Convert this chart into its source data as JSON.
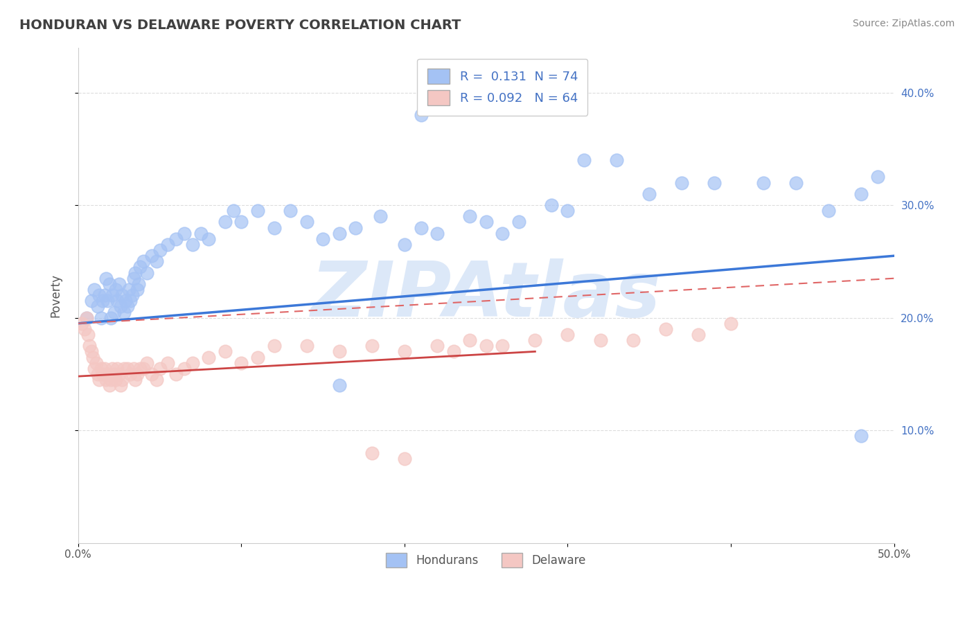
{
  "title": "HONDURAN VS DELAWARE POVERTY CORRELATION CHART",
  "source_text": "Source: ZipAtlas.com",
  "ylabel": "Poverty",
  "xlim": [
    0.0,
    0.5
  ],
  "ylim": [
    0.0,
    0.44
  ],
  "xticks": [
    0.0,
    0.1,
    0.2,
    0.3,
    0.4,
    0.5
  ],
  "xticklabels": [
    "0.0%",
    "",
    "",
    "",
    "",
    "50.0%"
  ],
  "yticks_right": [
    0.1,
    0.2,
    0.3,
    0.4
  ],
  "yticklabels_right": [
    "10.0%",
    "20.0%",
    "30.0%",
    "40.0%"
  ],
  "legend_r1": "0.131",
  "legend_n1": "74",
  "legend_r2": "0.092",
  "legend_n2": "64",
  "series1_label": "Hondurans",
  "series2_label": "Delaware",
  "series1_color": "#a4c2f4",
  "series2_color": "#f4c7c3",
  "trend1_color": "#3c78d8",
  "trend2_color": "#cc4444",
  "trend2_dash_color": "#e06666",
  "grid_color": "#dddddd",
  "background_color": "#ffffff",
  "watermark_text": "ZIPAtlas",
  "watermark_color": "#dce8f8",
  "title_color": "#404040",
  "axis_label_color": "#4472c4",
  "tick_label_color": "#555555",
  "series1_x": [
    0.005,
    0.008,
    0.01,
    0.012,
    0.013,
    0.014,
    0.015,
    0.016,
    0.017,
    0.018,
    0.019,
    0.02,
    0.021,
    0.022,
    0.023,
    0.024,
    0.025,
    0.026,
    0.027,
    0.028,
    0.029,
    0.03,
    0.031,
    0.032,
    0.033,
    0.034,
    0.035,
    0.036,
    0.037,
    0.038,
    0.04,
    0.042,
    0.045,
    0.048,
    0.05,
    0.055,
    0.06,
    0.065,
    0.07,
    0.075,
    0.08,
    0.09,
    0.095,
    0.1,
    0.11,
    0.12,
    0.13,
    0.14,
    0.15,
    0.16,
    0.17,
    0.185,
    0.2,
    0.21,
    0.22,
    0.24,
    0.26,
    0.27,
    0.29,
    0.3,
    0.31,
    0.33,
    0.35,
    0.37,
    0.39,
    0.42,
    0.44,
    0.46,
    0.48,
    0.49,
    0.21,
    0.25,
    0.16,
    0.48
  ],
  "series1_y": [
    0.2,
    0.215,
    0.225,
    0.21,
    0.22,
    0.2,
    0.215,
    0.22,
    0.235,
    0.215,
    0.23,
    0.2,
    0.22,
    0.205,
    0.225,
    0.215,
    0.23,
    0.21,
    0.22,
    0.205,
    0.215,
    0.21,
    0.225,
    0.215,
    0.22,
    0.235,
    0.24,
    0.225,
    0.23,
    0.245,
    0.25,
    0.24,
    0.255,
    0.25,
    0.26,
    0.265,
    0.27,
    0.275,
    0.265,
    0.275,
    0.27,
    0.285,
    0.295,
    0.285,
    0.295,
    0.28,
    0.295,
    0.285,
    0.27,
    0.275,
    0.28,
    0.29,
    0.265,
    0.28,
    0.275,
    0.29,
    0.275,
    0.285,
    0.3,
    0.295,
    0.34,
    0.34,
    0.31,
    0.32,
    0.32,
    0.32,
    0.32,
    0.295,
    0.31,
    0.325,
    0.38,
    0.285,
    0.14,
    0.095
  ],
  "series2_x": [
    0.002,
    0.004,
    0.005,
    0.006,
    0.007,
    0.008,
    0.009,
    0.01,
    0.011,
    0.012,
    0.013,
    0.014,
    0.015,
    0.016,
    0.017,
    0.018,
    0.019,
    0.02,
    0.021,
    0.022,
    0.023,
    0.024,
    0.025,
    0.026,
    0.027,
    0.028,
    0.03,
    0.032,
    0.034,
    0.035,
    0.036,
    0.038,
    0.04,
    0.042,
    0.045,
    0.048,
    0.05,
    0.055,
    0.06,
    0.065,
    0.07,
    0.08,
    0.09,
    0.1,
    0.11,
    0.12,
    0.14,
    0.16,
    0.18,
    0.2,
    0.22,
    0.24,
    0.26,
    0.28,
    0.3,
    0.32,
    0.34,
    0.36,
    0.38,
    0.4,
    0.18,
    0.2,
    0.23,
    0.25
  ],
  "series2_y": [
    0.195,
    0.19,
    0.2,
    0.185,
    0.175,
    0.17,
    0.165,
    0.155,
    0.16,
    0.15,
    0.145,
    0.155,
    0.15,
    0.155,
    0.145,
    0.15,
    0.14,
    0.145,
    0.155,
    0.15,
    0.145,
    0.155,
    0.15,
    0.14,
    0.145,
    0.155,
    0.155,
    0.15,
    0.155,
    0.145,
    0.15,
    0.155,
    0.155,
    0.16,
    0.15,
    0.145,
    0.155,
    0.16,
    0.15,
    0.155,
    0.16,
    0.165,
    0.17,
    0.16,
    0.165,
    0.175,
    0.175,
    0.17,
    0.175,
    0.17,
    0.175,
    0.18,
    0.175,
    0.18,
    0.185,
    0.18,
    0.18,
    0.19,
    0.185,
    0.195,
    0.08,
    0.075,
    0.17,
    0.175
  ]
}
